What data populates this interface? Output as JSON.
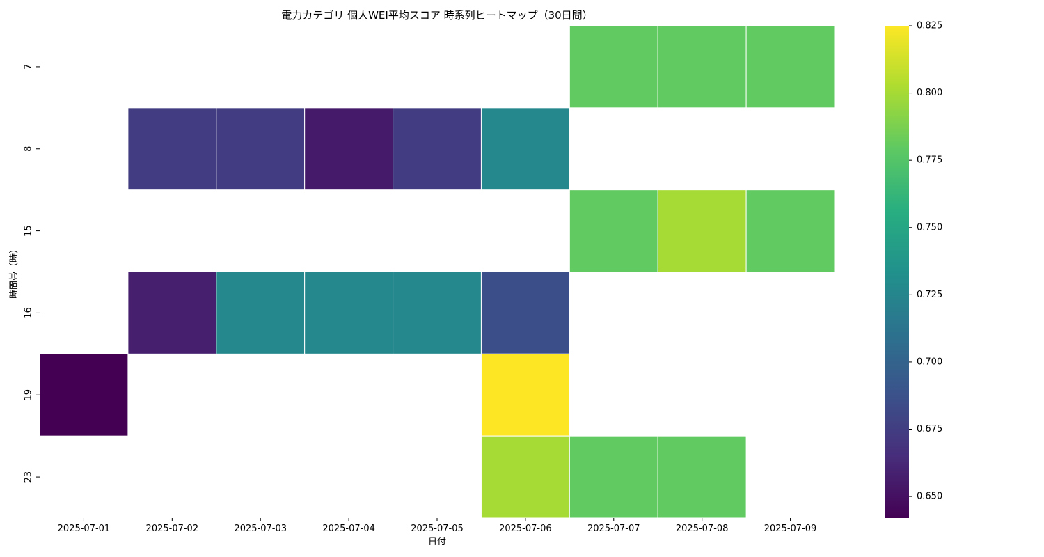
{
  "chart_data": {
    "type": "heatmap",
    "title": "電力カテゴリ 個人WEI平均スコア 時系列ヒートマップ（30日間）",
    "xlabel": "日付",
    "ylabel": "時間帯（時）",
    "x": [
      "2025-07-01",
      "2025-07-02",
      "2025-07-03",
      "2025-07-04",
      "2025-07-05",
      "2025-07-06",
      "2025-07-07",
      "2025-07-08",
      "2025-07-09"
    ],
    "y": [
      "7",
      "8",
      "15",
      "16",
      "19",
      "23"
    ],
    "values": [
      [
        null,
        null,
        null,
        null,
        null,
        null,
        0.78,
        0.78,
        0.78
      ],
      [
        null,
        0.675,
        0.675,
        0.655,
        0.675,
        0.727,
        null,
        null,
        null
      ],
      [
        null,
        null,
        null,
        null,
        null,
        null,
        0.78,
        0.8,
        0.78
      ],
      [
        null,
        0.658,
        0.727,
        0.727,
        0.727,
        0.685,
        null,
        null,
        null
      ],
      [
        0.642,
        null,
        null,
        null,
        null,
        0.825,
        null,
        null,
        null
      ],
      [
        null,
        null,
        null,
        null,
        null,
        0.8,
        0.78,
        0.78,
        null
      ]
    ],
    "colorbar": {
      "colormap": "viridis",
      "min": 0.642,
      "max": 0.825,
      "ticks": [
        "0.650",
        "0.675",
        "0.700",
        "0.725",
        "0.750",
        "0.775",
        "0.800",
        "0.825"
      ]
    },
    "grid": false,
    "legend": "colorbar-right"
  }
}
